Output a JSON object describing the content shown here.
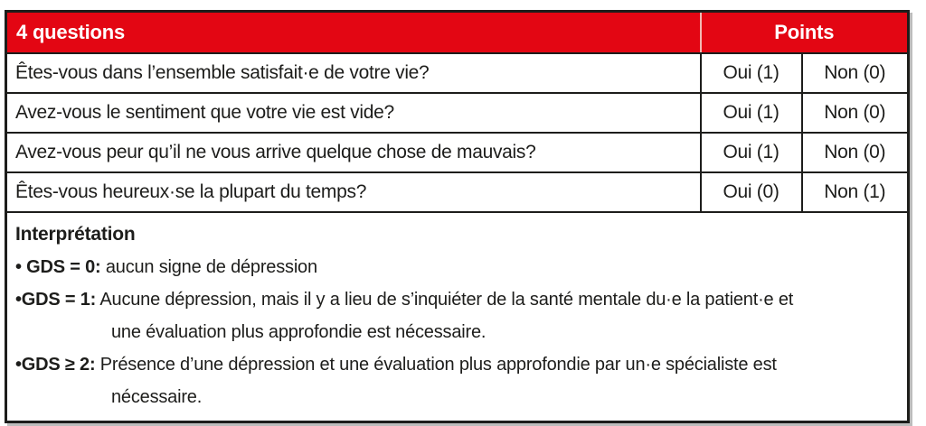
{
  "colors": {
    "header_red": "#e30613",
    "header_text": "#ffffff",
    "body_text": "#1d1d1b",
    "border": "#1d1d1b"
  },
  "table": {
    "header": {
      "questions_label": "4 questions",
      "points_label": "Points"
    },
    "rows": [
      {
        "question": "Êtes-vous dans l’ensemble satisfait·e de votre vie?",
        "oui": "Oui (1)",
        "non": "Non (0)"
      },
      {
        "question": "Avez-vous le sentiment que votre vie est vide?",
        "oui": "Oui (1)",
        "non": "Non (0)"
      },
      {
        "question": "Avez-vous peur qu’il ne vous arrive quelque chose de mauvais?",
        "oui": "Oui (1)",
        "non": "Non (0)"
      },
      {
        "question": "Êtes-vous heureux·se la plupart du temps?",
        "oui": "Oui (0)",
        "non": "Non (1)"
      }
    ],
    "interpretation": {
      "title": "Interprétation",
      "bullets": [
        {
          "label": "• GDS = 0:",
          "text": "aucun signe de dépression"
        },
        {
          "label": "•GDS = 1:",
          "text": "Aucune dépression, mais il y a lieu de s’inquiéter de la santé mentale du·e la patient·e et\nune évaluation plus approfondie est nécessaire."
        },
        {
          "label": "•GDS ≥ 2:",
          "text": "Présence d’une dépression et une évaluation plus approfondie par un·e spécialiste est\nnécessaire."
        }
      ]
    }
  }
}
